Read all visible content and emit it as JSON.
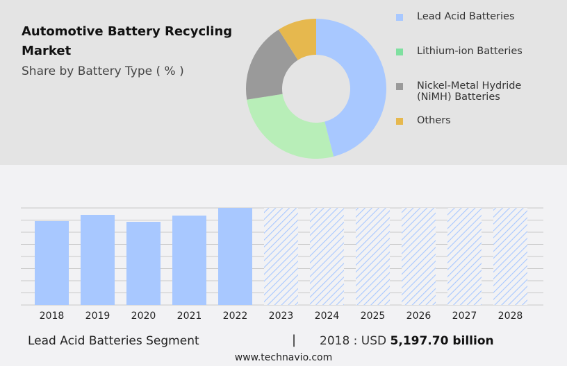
{
  "header": {
    "title": "Automotive Battery Recycling Market",
    "subtitle": "Share by Battery Type ( % )"
  },
  "chart_data": [
    {
      "type": "pie",
      "style": "donut",
      "categories": [
        "Lead Acid Batteries",
        "Lithium-ion Batteries",
        "Nickel-Metal Hydride (NiMH) Batteries",
        "Others"
      ],
      "values": [
        46,
        26.5,
        18.5,
        9
      ],
      "colors": [
        "#a8c8ff",
        "#b8eeb8",
        "#9a9a9a",
        "#e6b84e"
      ],
      "legend_colors": [
        "#a8c8ff",
        "#7fe0a0",
        "#9a9a9a",
        "#e6b84e"
      ],
      "legend": "right"
    },
    {
      "type": "bar",
      "categories": [
        "2018",
        "2019",
        "2020",
        "2021",
        "2022",
        "2023",
        "2024",
        "2025",
        "2026",
        "2027",
        "2028"
      ],
      "values": [
        5197.7,
        5585,
        5155,
        5542,
        6014,
        null,
        null,
        null,
        null,
        null,
        null
      ],
      "forecast": [
        false,
        false,
        false,
        false,
        false,
        true,
        true,
        true,
        true,
        true,
        true
      ],
      "grid": true,
      "color": "#a8c8ff"
    }
  ],
  "footer": {
    "segment": "Lead Acid Batteries Segment",
    "separator": "|",
    "year_label": "2018 : USD",
    "value": "5,197.70 billion",
    "site": "www.technavio.com"
  }
}
